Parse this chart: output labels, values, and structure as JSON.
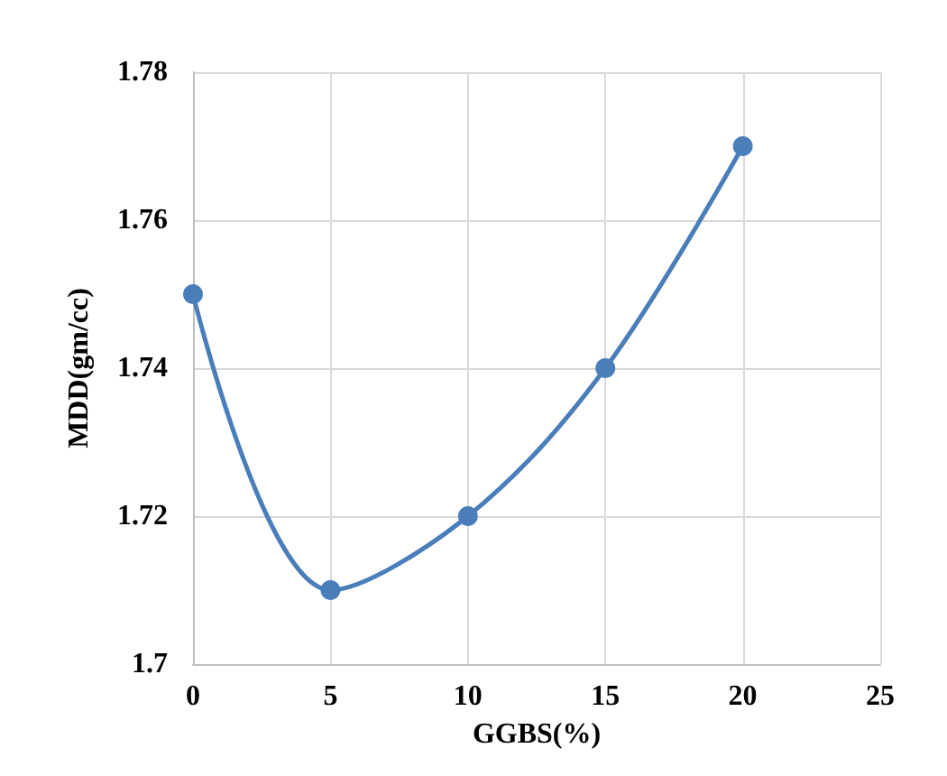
{
  "chart_data": {
    "type": "line",
    "xlabel": "GGBS(%)",
    "ylabel": "MDD(gm/cc)",
    "x": [
      0,
      5,
      10,
      15,
      20
    ],
    "series": [
      {
        "color": "#4a7ebb",
        "values": [
          1.75,
          1.71,
          1.72,
          1.74,
          1.77
        ]
      }
    ],
    "xlim": [
      0,
      25
    ],
    "xticks": [
      0,
      5,
      10,
      15,
      20,
      25
    ],
    "ylim": [
      1.7,
      1.78
    ],
    "yticks": [
      1.7,
      1.72,
      1.74,
      1.76,
      1.78
    ],
    "grid": true,
    "marker": "circle",
    "line_style": "solid"
  }
}
